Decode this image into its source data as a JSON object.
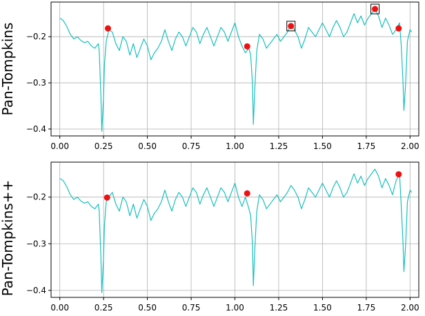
{
  "colors": {
    "signal": "#17bfbf",
    "peak": "#ee1111",
    "marker_box": "#000000",
    "grid": "#b0b0b0"
  },
  "chart_data": [
    {
      "type": "line",
      "ylabel": "Pan-Tompkins",
      "xlim": [
        -0.05,
        2.05
      ],
      "ylim": [
        -0.415,
        -0.125
      ],
      "xticks": [
        0.0,
        0.25,
        0.5,
        0.75,
        1.0,
        1.25,
        1.5,
        1.75,
        2.0
      ],
      "xtick_labels": [
        "0.00",
        "0.25",
        "0.50",
        "0.75",
        "1.00",
        "1.25",
        "1.50",
        "1.75",
        "2.00"
      ],
      "yticks": [
        -0.4,
        -0.3,
        -0.2
      ],
      "ytick_labels": [
        "−0.4",
        "−0.3",
        "−0.2"
      ],
      "grid": true,
      "series": [
        {
          "signal": [
            [
              0.0,
              -0.16
            ],
            [
              0.02,
              -0.165
            ],
            [
              0.04,
              -0.178
            ],
            [
              0.06,
              -0.195
            ],
            [
              0.08,
              -0.205
            ],
            [
              0.1,
              -0.2
            ],
            [
              0.12,
              -0.208
            ],
            [
              0.14,
              -0.213
            ],
            [
              0.16,
              -0.21
            ],
            [
              0.18,
              -0.22
            ],
            [
              0.2,
              -0.225
            ],
            [
              0.22,
              -0.215
            ],
            [
              0.225,
              -0.23
            ],
            [
              0.235,
              -0.33
            ],
            [
              0.24,
              -0.405
            ],
            [
              0.25,
              -0.33
            ],
            [
              0.255,
              -0.26
            ],
            [
              0.265,
              -0.21
            ],
            [
              0.28,
              -0.185
            ],
            [
              0.3,
              -0.19
            ],
            [
              0.32,
              -0.215
            ],
            [
              0.34,
              -0.23
            ],
            [
              0.36,
              -0.2
            ],
            [
              0.38,
              -0.21
            ],
            [
              0.4,
              -0.24
            ],
            [
              0.42,
              -0.215
            ],
            [
              0.44,
              -0.245
            ],
            [
              0.46,
              -0.225
            ],
            [
              0.48,
              -0.205
            ],
            [
              0.5,
              -0.22
            ],
            [
              0.52,
              -0.25
            ],
            [
              0.54,
              -0.235
            ],
            [
              0.56,
              -0.225
            ],
            [
              0.58,
              -0.21
            ],
            [
              0.6,
              -0.185
            ],
            [
              0.62,
              -0.21
            ],
            [
              0.64,
              -0.23
            ],
            [
              0.66,
              -0.205
            ],
            [
              0.68,
              -0.19
            ],
            [
              0.7,
              -0.2
            ],
            [
              0.72,
              -0.22
            ],
            [
              0.74,
              -0.2
            ],
            [
              0.76,
              -0.18
            ],
            [
              0.78,
              -0.19
            ],
            [
              0.8,
              -0.215
            ],
            [
              0.82,
              -0.195
            ],
            [
              0.84,
              -0.18
            ],
            [
              0.86,
              -0.2
            ],
            [
              0.88,
              -0.22
            ],
            [
              0.9,
              -0.2
            ],
            [
              0.92,
              -0.18
            ],
            [
              0.94,
              -0.19
            ],
            [
              0.96,
              -0.21
            ],
            [
              0.98,
              -0.19
            ],
            [
              1.0,
              -0.17
            ],
            [
              1.02,
              -0.2
            ],
            [
              1.04,
              -0.22
            ],
            [
              1.06,
              -0.235
            ],
            [
              1.08,
              -0.225
            ],
            [
              1.09,
              -0.24
            ],
            [
              1.1,
              -0.3
            ],
            [
              1.105,
              -0.39
            ],
            [
              1.115,
              -0.3
            ],
            [
              1.125,
              -0.23
            ],
            [
              1.14,
              -0.195
            ],
            [
              1.16,
              -0.205
            ],
            [
              1.18,
              -0.225
            ],
            [
              1.2,
              -0.215
            ],
            [
              1.22,
              -0.205
            ],
            [
              1.24,
              -0.195
            ],
            [
              1.26,
              -0.21
            ],
            [
              1.28,
              -0.2
            ],
            [
              1.3,
              -0.19
            ],
            [
              1.32,
              -0.175
            ],
            [
              1.34,
              -0.185
            ],
            [
              1.36,
              -0.2
            ],
            [
              1.38,
              -0.225
            ],
            [
              1.4,
              -0.205
            ],
            [
              1.42,
              -0.18
            ],
            [
              1.44,
              -0.19
            ],
            [
              1.46,
              -0.2
            ],
            [
              1.48,
              -0.185
            ],
            [
              1.5,
              -0.17
            ],
            [
              1.52,
              -0.185
            ],
            [
              1.54,
              -0.2
            ],
            [
              1.56,
              -0.18
            ],
            [
              1.58,
              -0.165
            ],
            [
              1.6,
              -0.18
            ],
            [
              1.62,
              -0.2
            ],
            [
              1.64,
              -0.19
            ],
            [
              1.66,
              -0.17
            ],
            [
              1.68,
              -0.15
            ],
            [
              1.7,
              -0.17
            ],
            [
              1.72,
              -0.155
            ],
            [
              1.74,
              -0.175
            ],
            [
              1.76,
              -0.16
            ],
            [
              1.78,
              -0.15
            ],
            [
              1.8,
              -0.14
            ],
            [
              1.82,
              -0.155
            ],
            [
              1.84,
              -0.18
            ],
            [
              1.86,
              -0.16
            ],
            [
              1.88,
              -0.175
            ],
            [
              1.9,
              -0.195
            ],
            [
              1.92,
              -0.185
            ],
            [
              1.94,
              -0.17
            ],
            [
              1.95,
              -0.22
            ],
            [
              1.96,
              -0.3
            ],
            [
              1.965,
              -0.36
            ],
            [
              1.975,
              -0.3
            ],
            [
              1.985,
              -0.21
            ],
            [
              2.0,
              -0.185
            ],
            [
              2.01,
              -0.19
            ]
          ],
          "peaks": [
            [
              0.275,
              -0.182
            ],
            [
              1.07,
              -0.221
            ],
            [
              1.32,
              -0.177
            ],
            [
              1.8,
              -0.14
            ],
            [
              1.935,
              -0.182
            ]
          ],
          "boxed_peaks": [
            [
              1.32,
              -0.177
            ],
            [
              1.8,
              -0.14
            ]
          ]
        }
      ]
    },
    {
      "type": "line",
      "ylabel": "Pan-Tompkins++",
      "xlim": [
        -0.05,
        2.05
      ],
      "ylim": [
        -0.415,
        -0.125
      ],
      "xticks": [
        0.0,
        0.25,
        0.5,
        0.75,
        1.0,
        1.25,
        1.5,
        1.75,
        2.0
      ],
      "xtick_labels": [
        "0.00",
        "0.25",
        "0.50",
        "0.75",
        "1.00",
        "1.25",
        "1.50",
        "1.75",
        "2.00"
      ],
      "yticks": [
        -0.4,
        -0.3,
        -0.2
      ],
      "ytick_labels": [
        "−0.4",
        "−0.3",
        "−0.2"
      ],
      "grid": true,
      "series": [
        {
          "signal": [
            [
              0.0,
              -0.16
            ],
            [
              0.02,
              -0.165
            ],
            [
              0.04,
              -0.178
            ],
            [
              0.06,
              -0.195
            ],
            [
              0.08,
              -0.205
            ],
            [
              0.1,
              -0.2
            ],
            [
              0.12,
              -0.208
            ],
            [
              0.14,
              -0.213
            ],
            [
              0.16,
              -0.21
            ],
            [
              0.18,
              -0.22
            ],
            [
              0.2,
              -0.225
            ],
            [
              0.22,
              -0.215
            ],
            [
              0.225,
              -0.23
            ],
            [
              0.235,
              -0.33
            ],
            [
              0.24,
              -0.405
            ],
            [
              0.25,
              -0.33
            ],
            [
              0.255,
              -0.26
            ],
            [
              0.265,
              -0.21
            ],
            [
              0.28,
              -0.2
            ],
            [
              0.3,
              -0.19
            ],
            [
              0.32,
              -0.215
            ],
            [
              0.34,
              -0.23
            ],
            [
              0.36,
              -0.2
            ],
            [
              0.38,
              -0.21
            ],
            [
              0.4,
              -0.24
            ],
            [
              0.42,
              -0.215
            ],
            [
              0.44,
              -0.245
            ],
            [
              0.46,
              -0.225
            ],
            [
              0.48,
              -0.205
            ],
            [
              0.5,
              -0.22
            ],
            [
              0.52,
              -0.25
            ],
            [
              0.54,
              -0.235
            ],
            [
              0.56,
              -0.225
            ],
            [
              0.58,
              -0.21
            ],
            [
              0.6,
              -0.185
            ],
            [
              0.62,
              -0.21
            ],
            [
              0.64,
              -0.23
            ],
            [
              0.66,
              -0.205
            ],
            [
              0.68,
              -0.19
            ],
            [
              0.7,
              -0.2
            ],
            [
              0.72,
              -0.22
            ],
            [
              0.74,
              -0.2
            ],
            [
              0.76,
              -0.18
            ],
            [
              0.78,
              -0.19
            ],
            [
              0.8,
              -0.215
            ],
            [
              0.82,
              -0.195
            ],
            [
              0.84,
              -0.18
            ],
            [
              0.86,
              -0.2
            ],
            [
              0.88,
              -0.22
            ],
            [
              0.9,
              -0.2
            ],
            [
              0.92,
              -0.18
            ],
            [
              0.94,
              -0.19
            ],
            [
              0.96,
              -0.21
            ],
            [
              0.98,
              -0.19
            ],
            [
              1.0,
              -0.17
            ],
            [
              1.02,
              -0.2
            ],
            [
              1.04,
              -0.22
            ],
            [
              1.06,
              -0.2
            ],
            [
              1.08,
              -0.225
            ],
            [
              1.09,
              -0.24
            ],
            [
              1.1,
              -0.3
            ],
            [
              1.105,
              -0.39
            ],
            [
              1.115,
              -0.3
            ],
            [
              1.125,
              -0.23
            ],
            [
              1.14,
              -0.195
            ],
            [
              1.16,
              -0.205
            ],
            [
              1.18,
              -0.225
            ],
            [
              1.2,
              -0.215
            ],
            [
              1.22,
              -0.205
            ],
            [
              1.24,
              -0.195
            ],
            [
              1.26,
              -0.21
            ],
            [
              1.28,
              -0.2
            ],
            [
              1.3,
              -0.19
            ],
            [
              1.32,
              -0.175
            ],
            [
              1.34,
              -0.185
            ],
            [
              1.36,
              -0.2
            ],
            [
              1.38,
              -0.225
            ],
            [
              1.4,
              -0.205
            ],
            [
              1.42,
              -0.18
            ],
            [
              1.44,
              -0.19
            ],
            [
              1.46,
              -0.2
            ],
            [
              1.48,
              -0.185
            ],
            [
              1.5,
              -0.17
            ],
            [
              1.52,
              -0.185
            ],
            [
              1.54,
              -0.2
            ],
            [
              1.56,
              -0.18
            ],
            [
              1.58,
              -0.165
            ],
            [
              1.6,
              -0.18
            ],
            [
              1.62,
              -0.2
            ],
            [
              1.64,
              -0.19
            ],
            [
              1.66,
              -0.17
            ],
            [
              1.68,
              -0.15
            ],
            [
              1.7,
              -0.17
            ],
            [
              1.72,
              -0.155
            ],
            [
              1.74,
              -0.175
            ],
            [
              1.76,
              -0.16
            ],
            [
              1.78,
              -0.15
            ],
            [
              1.8,
              -0.14
            ],
            [
              1.82,
              -0.155
            ],
            [
              1.84,
              -0.18
            ],
            [
              1.86,
              -0.16
            ],
            [
              1.88,
              -0.175
            ],
            [
              1.9,
              -0.195
            ],
            [
              1.92,
              -0.165
            ],
            [
              1.94,
              -0.15
            ],
            [
              1.95,
              -0.22
            ],
            [
              1.96,
              -0.3
            ],
            [
              1.965,
              -0.36
            ],
            [
              1.975,
              -0.3
            ],
            [
              1.985,
              -0.21
            ],
            [
              2.0,
              -0.185
            ],
            [
              2.01,
              -0.19
            ]
          ],
          "peaks": [
            [
              0.27,
              -0.201
            ],
            [
              1.07,
              -0.192
            ],
            [
              1.935,
              -0.151
            ]
          ]
        }
      ]
    }
  ]
}
